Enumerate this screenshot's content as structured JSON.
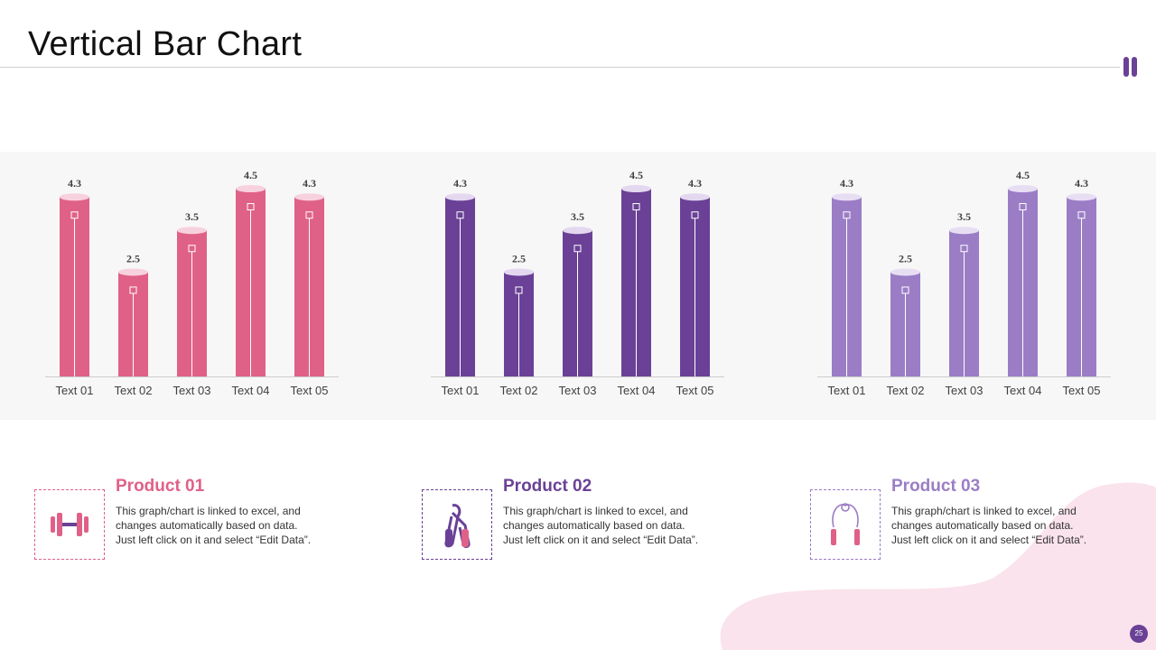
{
  "page": {
    "title": "Vertical Bar Chart",
    "page_number": "25"
  },
  "colors": {
    "pink": "#E06188",
    "pink_cap": "#F7D2DE",
    "purple": "#6A4196",
    "purple_cap": "#E3D8F0",
    "lavender": "#9B7DC6",
    "lavender_cap": "#E8DEF4",
    "blob": "#FAE3EC",
    "band": "#F7F7F7"
  },
  "chart_data": [
    {
      "type": "bar",
      "categories": [
        "Text 01",
        "Text 02",
        "Text 03",
        "Text 04",
        "Text 05"
      ],
      "values": [
        4.3,
        2.5,
        3.5,
        4.5,
        4.3
      ],
      "series_color": "pink",
      "title": "",
      "xlabel": "",
      "ylabel": "",
      "ylim": [
        0,
        4.5
      ],
      "grid": false
    },
    {
      "type": "bar",
      "categories": [
        "Text 01",
        "Text 02",
        "Text 03",
        "Text 04",
        "Text 05"
      ],
      "values": [
        4.3,
        2.5,
        3.5,
        4.5,
        4.3
      ],
      "series_color": "purple",
      "title": "",
      "xlabel": "",
      "ylabel": "",
      "ylim": [
        0,
        4.5
      ],
      "grid": false
    },
    {
      "type": "bar",
      "categories": [
        "Text 01",
        "Text 02",
        "Text 03",
        "Text 04",
        "Text 05"
      ],
      "values": [
        4.3,
        2.5,
        3.5,
        4.5,
        4.3
      ],
      "series_color": "lavender",
      "title": "",
      "xlabel": "",
      "ylabel": "",
      "ylim": [
        0,
        4.5
      ],
      "grid": false
    }
  ],
  "products": [
    {
      "title": "Product 01",
      "icon": "dumbbell-icon",
      "color": "pink",
      "desc_lines": [
        "This graph/chart is linked to excel, and",
        "changes automatically based on data.",
        "Just left click on it and select “Edit Data”."
      ]
    },
    {
      "title": "Product 02",
      "icon": "hand-grip-icon",
      "color": "purple",
      "desc_lines": [
        "This graph/chart is linked to excel, and",
        "changes automatically based on data.",
        "Just left click on it and select “Edit Data”."
      ]
    },
    {
      "title": "Product 03",
      "icon": "jump-rope-icon",
      "color": "lavender",
      "desc_lines": [
        "This graph/chart is linked to excel, and",
        "changes automatically based on data.",
        "Just left click on it and select “Edit Data”."
      ]
    }
  ]
}
